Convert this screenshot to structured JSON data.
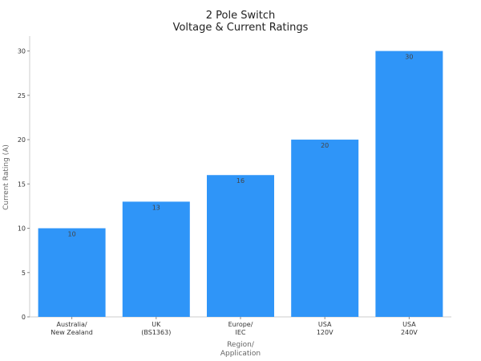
{
  "chart_data": {
    "type": "bar",
    "title_lines": [
      "2 Pole Switch",
      "Voltage & Current Ratings"
    ],
    "categories": [
      [
        "Australia/",
        "New Zealand"
      ],
      [
        "UK",
        "(BS1363)"
      ],
      [
        "Europe/",
        "IEC"
      ],
      [
        "USA",
        "120V"
      ],
      [
        "USA",
        "240V"
      ]
    ],
    "values": [
      10,
      13,
      16,
      20,
      30
    ],
    "data_labels": [
      "10",
      "13",
      "16",
      "20",
      "30"
    ],
    "xlabel_lines": [
      "Region/",
      "Application"
    ],
    "ylabel": "Current Rating (A)",
    "ylim": [
      0,
      31.5
    ],
    "yticks": [
      0,
      5,
      10,
      15,
      20,
      25,
      30
    ],
    "grid": false,
    "legend": "none",
    "bar_color": "#2f95f8",
    "axis_color": "#cccccc",
    "text_color": "#333333",
    "label_color": "#666666"
  }
}
